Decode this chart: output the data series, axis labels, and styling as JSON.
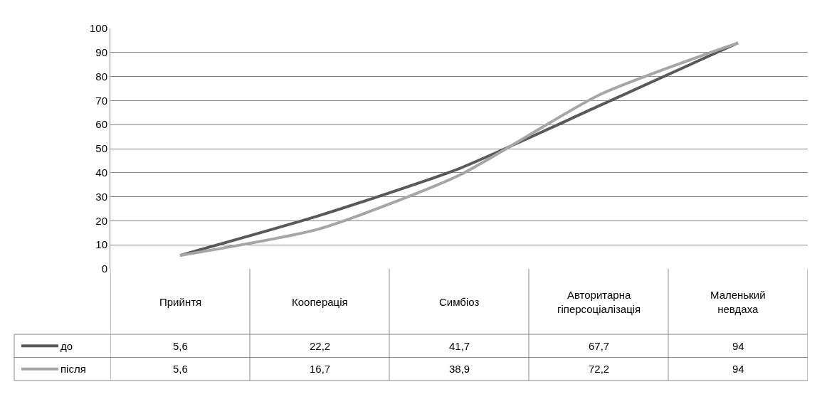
{
  "chart_data": {
    "type": "line",
    "categories": [
      "Прийнтя",
      "Кооперація",
      "Симбіоз",
      "Авторитарна гіперсоціалізація",
      "Маленький невдаха"
    ],
    "series": [
      {
        "name": "до",
        "color": "#595959",
        "values": [
          5.6,
          22.2,
          41.7,
          67.7,
          94
        ],
        "value_labels": [
          "5,6",
          "22,2",
          "41,7",
          "67,7",
          "94"
        ]
      },
      {
        "name": "після",
        "color": "#a6a6a6",
        "values": [
          5.6,
          16.7,
          38.9,
          72.2,
          94
        ],
        "value_labels": [
          "5,6",
          "16,7",
          "38,9",
          "72,2",
          "94"
        ]
      }
    ],
    "ylim": [
      0,
      100
    ],
    "yticks": [
      0,
      10,
      20,
      30,
      40,
      50,
      60,
      70,
      80,
      90,
      100
    ],
    "grid": "y",
    "legend": "bottom left",
    "marker": "none",
    "line_style": "solid"
  }
}
